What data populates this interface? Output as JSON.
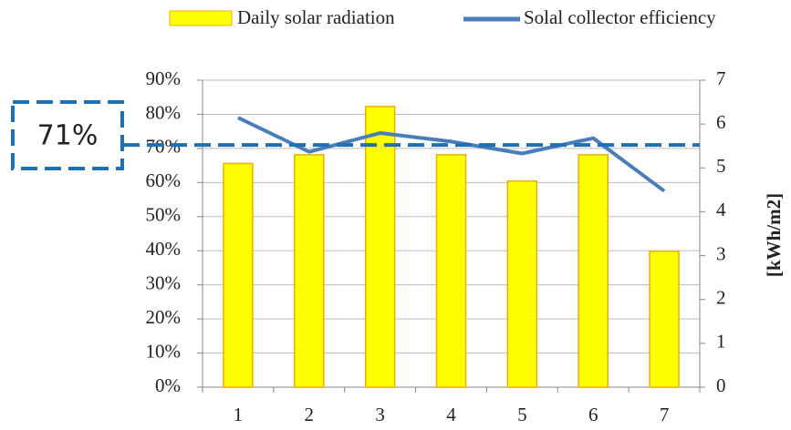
{
  "chart_data": {
    "type": "bar",
    "categories": [
      "1",
      "2",
      "3",
      "4",
      "5",
      "6",
      "7"
    ],
    "series": [
      {
        "name": "Daily solar radiation",
        "type": "bar",
        "axis": "y2",
        "color": "#ffff00",
        "values": [
          5.1,
          5.3,
          6.4,
          5.3,
          4.7,
          5.3,
          3.1
        ]
      },
      {
        "name": "Solal collector efficiency",
        "type": "line",
        "axis": "y",
        "color": "#4a7ebb",
        "values": [
          79,
          69,
          74.5,
          72,
          68.5,
          73,
          57.5
        ]
      }
    ],
    "ylim": [
      0,
      90
    ],
    "yticks": [
      {
        "value": 0,
        "label": "0%"
      },
      {
        "value": 10,
        "label": "10%"
      },
      {
        "value": 20,
        "label": "20%"
      },
      {
        "value": 30,
        "label": "30%"
      },
      {
        "value": 40,
        "label": "40%"
      },
      {
        "value": 50,
        "label": "50%"
      },
      {
        "value": 60,
        "label": "60%"
      },
      {
        "value": 70,
        "label": "70%"
      },
      {
        "value": 80,
        "label": "80%"
      },
      {
        "value": 90,
        "label": "90%"
      }
    ],
    "y2lim": [
      0,
      7
    ],
    "y2ticks": [
      0,
      1,
      2,
      3,
      4,
      5,
      6,
      7
    ],
    "y2label": "[kWh/m2]",
    "grid": true,
    "legend": "top",
    "annotations": [
      {
        "text": "71%",
        "y": 71,
        "color": "#1f6fb5"
      }
    ]
  }
}
